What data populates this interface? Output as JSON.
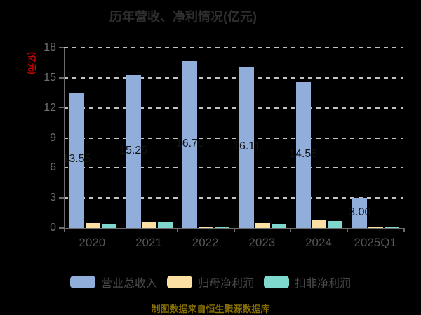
{
  "title": "历年营收、净利情况(亿元)",
  "y_axis": {
    "name": "(亿元)",
    "name_color": "#cc0000",
    "ticks": [
      0,
      3,
      6,
      9,
      12,
      15,
      18
    ]
  },
  "footer": {
    "text": "制图数据来自恒生聚源数据库",
    "color": "#8a7200"
  },
  "colors": {
    "background": "#000000",
    "title_text": "#2f2f2f",
    "axis_line": "#6b6b6b",
    "grid_dash": "#c2c2c2",
    "y_tick_text": "#707070",
    "x_tick_text": "#565656",
    "legend_text": "#4a4a4a",
    "bar_value_text": "#141414"
  },
  "chart_data": {
    "type": "bar",
    "title": "历年营收、净利情况(亿元)",
    "categories": [
      "2020",
      "2021",
      "2022",
      "2023",
      "2024",
      "2025Q1"
    ],
    "series": [
      {
        "name": "营业总收入",
        "color": "#91AEDA",
        "values": [
          13.55,
          15.25,
          16.7,
          16.11,
          14.58,
          3.0
        ],
        "labels": [
          "13.55",
          "15.25",
          "16.70",
          "16.11",
          "14.58",
          "3.00"
        ],
        "labels_shown": true
      },
      {
        "name": "归母净利润",
        "color": "#FBDFA3",
        "values": [
          0.5,
          0.62,
          0.15,
          0.5,
          0.78,
          0.04
        ],
        "labels_shown": false
      },
      {
        "name": "扣非净利润",
        "color": "#7FD8CD",
        "values": [
          0.4,
          0.6,
          0.08,
          0.45,
          0.72,
          0.1
        ],
        "labels_shown": false
      }
    ],
    "ylabel": "(亿元)",
    "ylim": [
      0,
      18
    ],
    "grid": "dashed horizontal",
    "legend_position": "bottom",
    "source_note": "制图数据来自恒生聚源数据库"
  }
}
